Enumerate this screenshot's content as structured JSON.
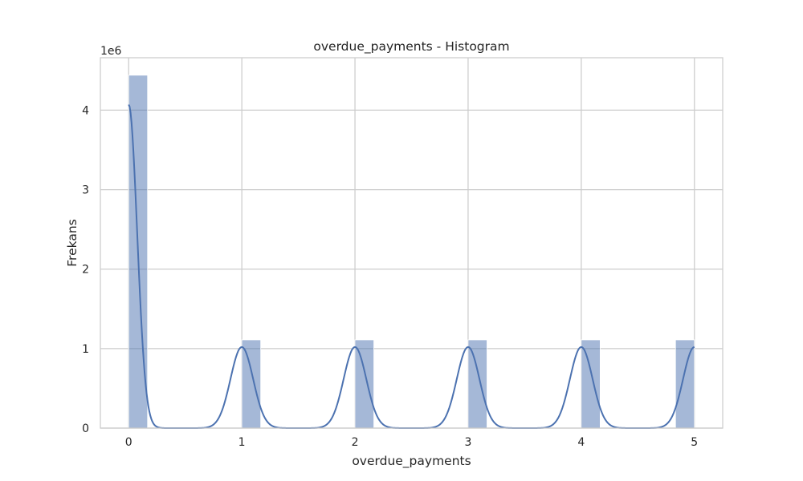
{
  "chart_data": {
    "type": "bar",
    "title": "overdue_payments - Histogram",
    "xlabel": "overdue_payments",
    "ylabel": "Frekans",
    "y_offset_label": "1e6",
    "y_scale": 1000000,
    "xlim": [
      -0.25,
      5.25
    ],
    "ylim": [
      0,
      4.66
    ],
    "x_ticks": [
      0,
      1,
      2,
      3,
      4,
      5
    ],
    "x_tick_labels": [
      "0",
      "1",
      "2",
      "3",
      "4",
      "5"
    ],
    "y_ticks": [
      0,
      1,
      2,
      3,
      4
    ],
    "y_tick_labels": [
      "0",
      "1",
      "2",
      "3",
      "4"
    ],
    "grid": true,
    "bar_color": "#4c72b0",
    "bar_opacity": 0.5,
    "line_color": "#4c72b0",
    "bins": [
      {
        "x0": 0.0,
        "x1": 0.167,
        "value": 4.44
      },
      {
        "x0": 1.0,
        "x1": 1.167,
        "value": 1.11
      },
      {
        "x0": 2.0,
        "x1": 2.167,
        "value": 1.11
      },
      {
        "x0": 3.0,
        "x1": 3.167,
        "value": 1.11
      },
      {
        "x0": 4.0,
        "x1": 4.167,
        "value": 1.11
      },
      {
        "x0": 4.833,
        "x1": 5.0,
        "value": 1.11
      }
    ],
    "kde": {
      "peaks": [
        {
          "center": 0,
          "height": 4.07,
          "sigma": 0.075
        },
        {
          "center": 1,
          "height": 1.02,
          "sigma": 0.1
        },
        {
          "center": 2,
          "height": 1.02,
          "sigma": 0.1
        },
        {
          "center": 3,
          "height": 1.02,
          "sigma": 0.1
        },
        {
          "center": 4,
          "height": 1.02,
          "sigma": 0.1
        },
        {
          "center": 5,
          "height": 1.02,
          "sigma": 0.1
        }
      ],
      "range": [
        0,
        5
      ]
    }
  }
}
